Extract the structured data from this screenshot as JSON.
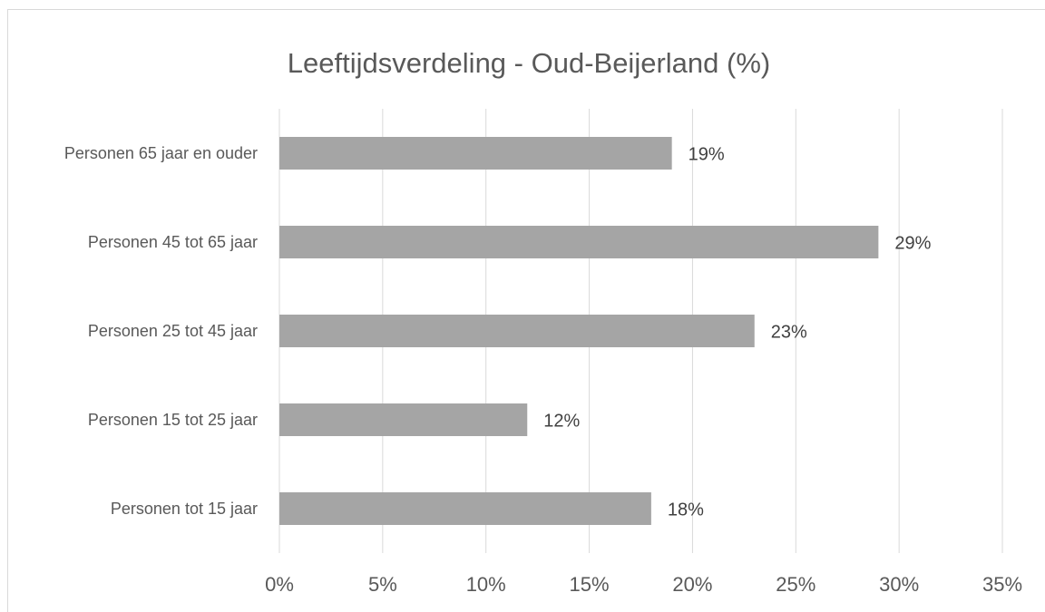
{
  "chart_data": {
    "type": "bar",
    "orientation": "horizontal",
    "title": "Leeftijdsverdeling - Oud-Beijerland (%)",
    "categories": [
      "Personen 65 jaar en ouder",
      "Personen 45 tot 65 jaar",
      "Personen 25 tot 45 jaar",
      "Personen 15 tot 25 jaar",
      "Personen tot 15 jaar"
    ],
    "values": [
      19,
      29,
      23,
      12,
      18
    ],
    "value_labels": [
      "19%",
      "29%",
      "23%",
      "12%",
      "18%"
    ],
    "color": "#a5a5a5",
    "xlim": [
      0,
      35
    ],
    "xticks": [
      {
        "value": 0,
        "label": "0%"
      },
      {
        "value": 5,
        "label": "5%"
      },
      {
        "value": 10,
        "label": "10%"
      },
      {
        "value": 15,
        "label": "15%"
      },
      {
        "value": 20,
        "label": "20%"
      },
      {
        "value": 25,
        "label": "25%"
      },
      {
        "value": 30,
        "label": "30%"
      },
      {
        "value": 35,
        "label": "35%"
      }
    ],
    "grid": true
  }
}
